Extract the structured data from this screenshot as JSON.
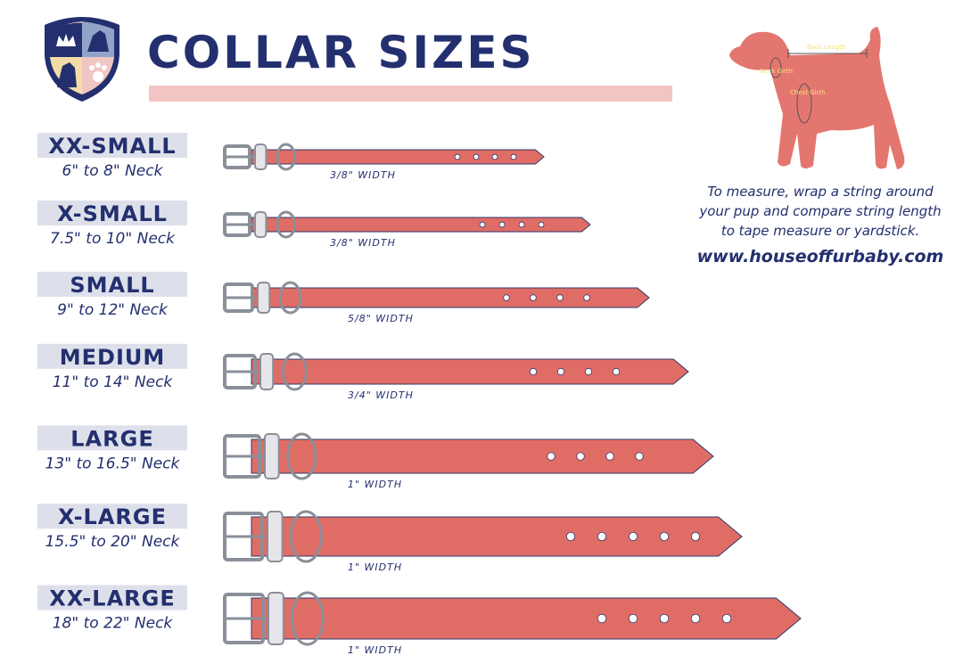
{
  "header": {
    "title": "COLLAR SIZES"
  },
  "sizes": [
    {
      "name": "XX-SMALL",
      "neck": "6\" to 8\" Neck",
      "width": "3/8\" WIDTH"
    },
    {
      "name": "X-SMALL",
      "neck": "7.5\" to 10\" Neck",
      "width": "3/8\" WIDTH"
    },
    {
      "name": "SMALL",
      "neck": "9\" to 12\" Neck",
      "width": "5/8\" WIDTH"
    },
    {
      "name": "MEDIUM",
      "neck": "11\" to 14\" Neck",
      "width": "3/4\" WIDTH"
    },
    {
      "name": "LARGE",
      "neck": "13\" to 16.5\" Neck",
      "width": "1\" WIDTH"
    },
    {
      "name": "X-LARGE",
      "neck": "15.5\" to 20\" Neck",
      "width": "1\" WIDTH"
    },
    {
      "name": "XX-LARGE",
      "neck": "18\" to 22\" Neck",
      "width": "1\" WIDTH"
    }
  ],
  "dog": {
    "back_label": "Back Length",
    "neck_label": "Neck Girth",
    "chest_label": "Chest Girth"
  },
  "instructions": {
    "lines": [
      "To measure, wrap a string around",
      "your pup and compare string length",
      "to tape measure or yardstick."
    ],
    "url": "www.houseoffurbaby.com"
  }
}
